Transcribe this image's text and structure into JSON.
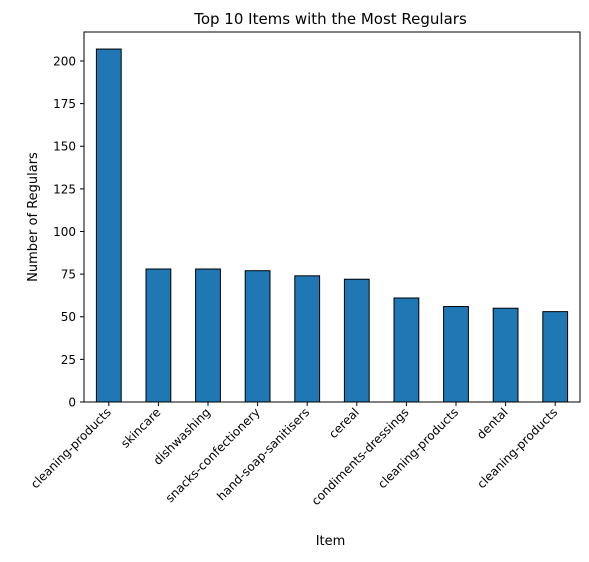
{
  "chart_data": {
    "type": "bar",
    "title": "Top 10 Items with the Most Regulars",
    "xlabel": "Item",
    "ylabel": "Number of Regulars",
    "categories": [
      "cleaning-products",
      "skincare",
      "dishwashing",
      "snacks-confectionery",
      "hand-soap-sanitisers",
      "cereal",
      "condiments-dressings",
      "cleaning-products",
      "dental",
      "cleaning-products"
    ],
    "values": [
      207,
      78,
      78,
      77,
      74,
      72,
      61,
      56,
      55,
      53
    ],
    "ylim": [
      0,
      217
    ],
    "yticks": [
      0,
      25,
      50,
      75,
      100,
      125,
      150,
      175,
      200
    ],
    "bar_color": "#1f77b4",
    "edge_color": "#000000",
    "grid": false
  }
}
